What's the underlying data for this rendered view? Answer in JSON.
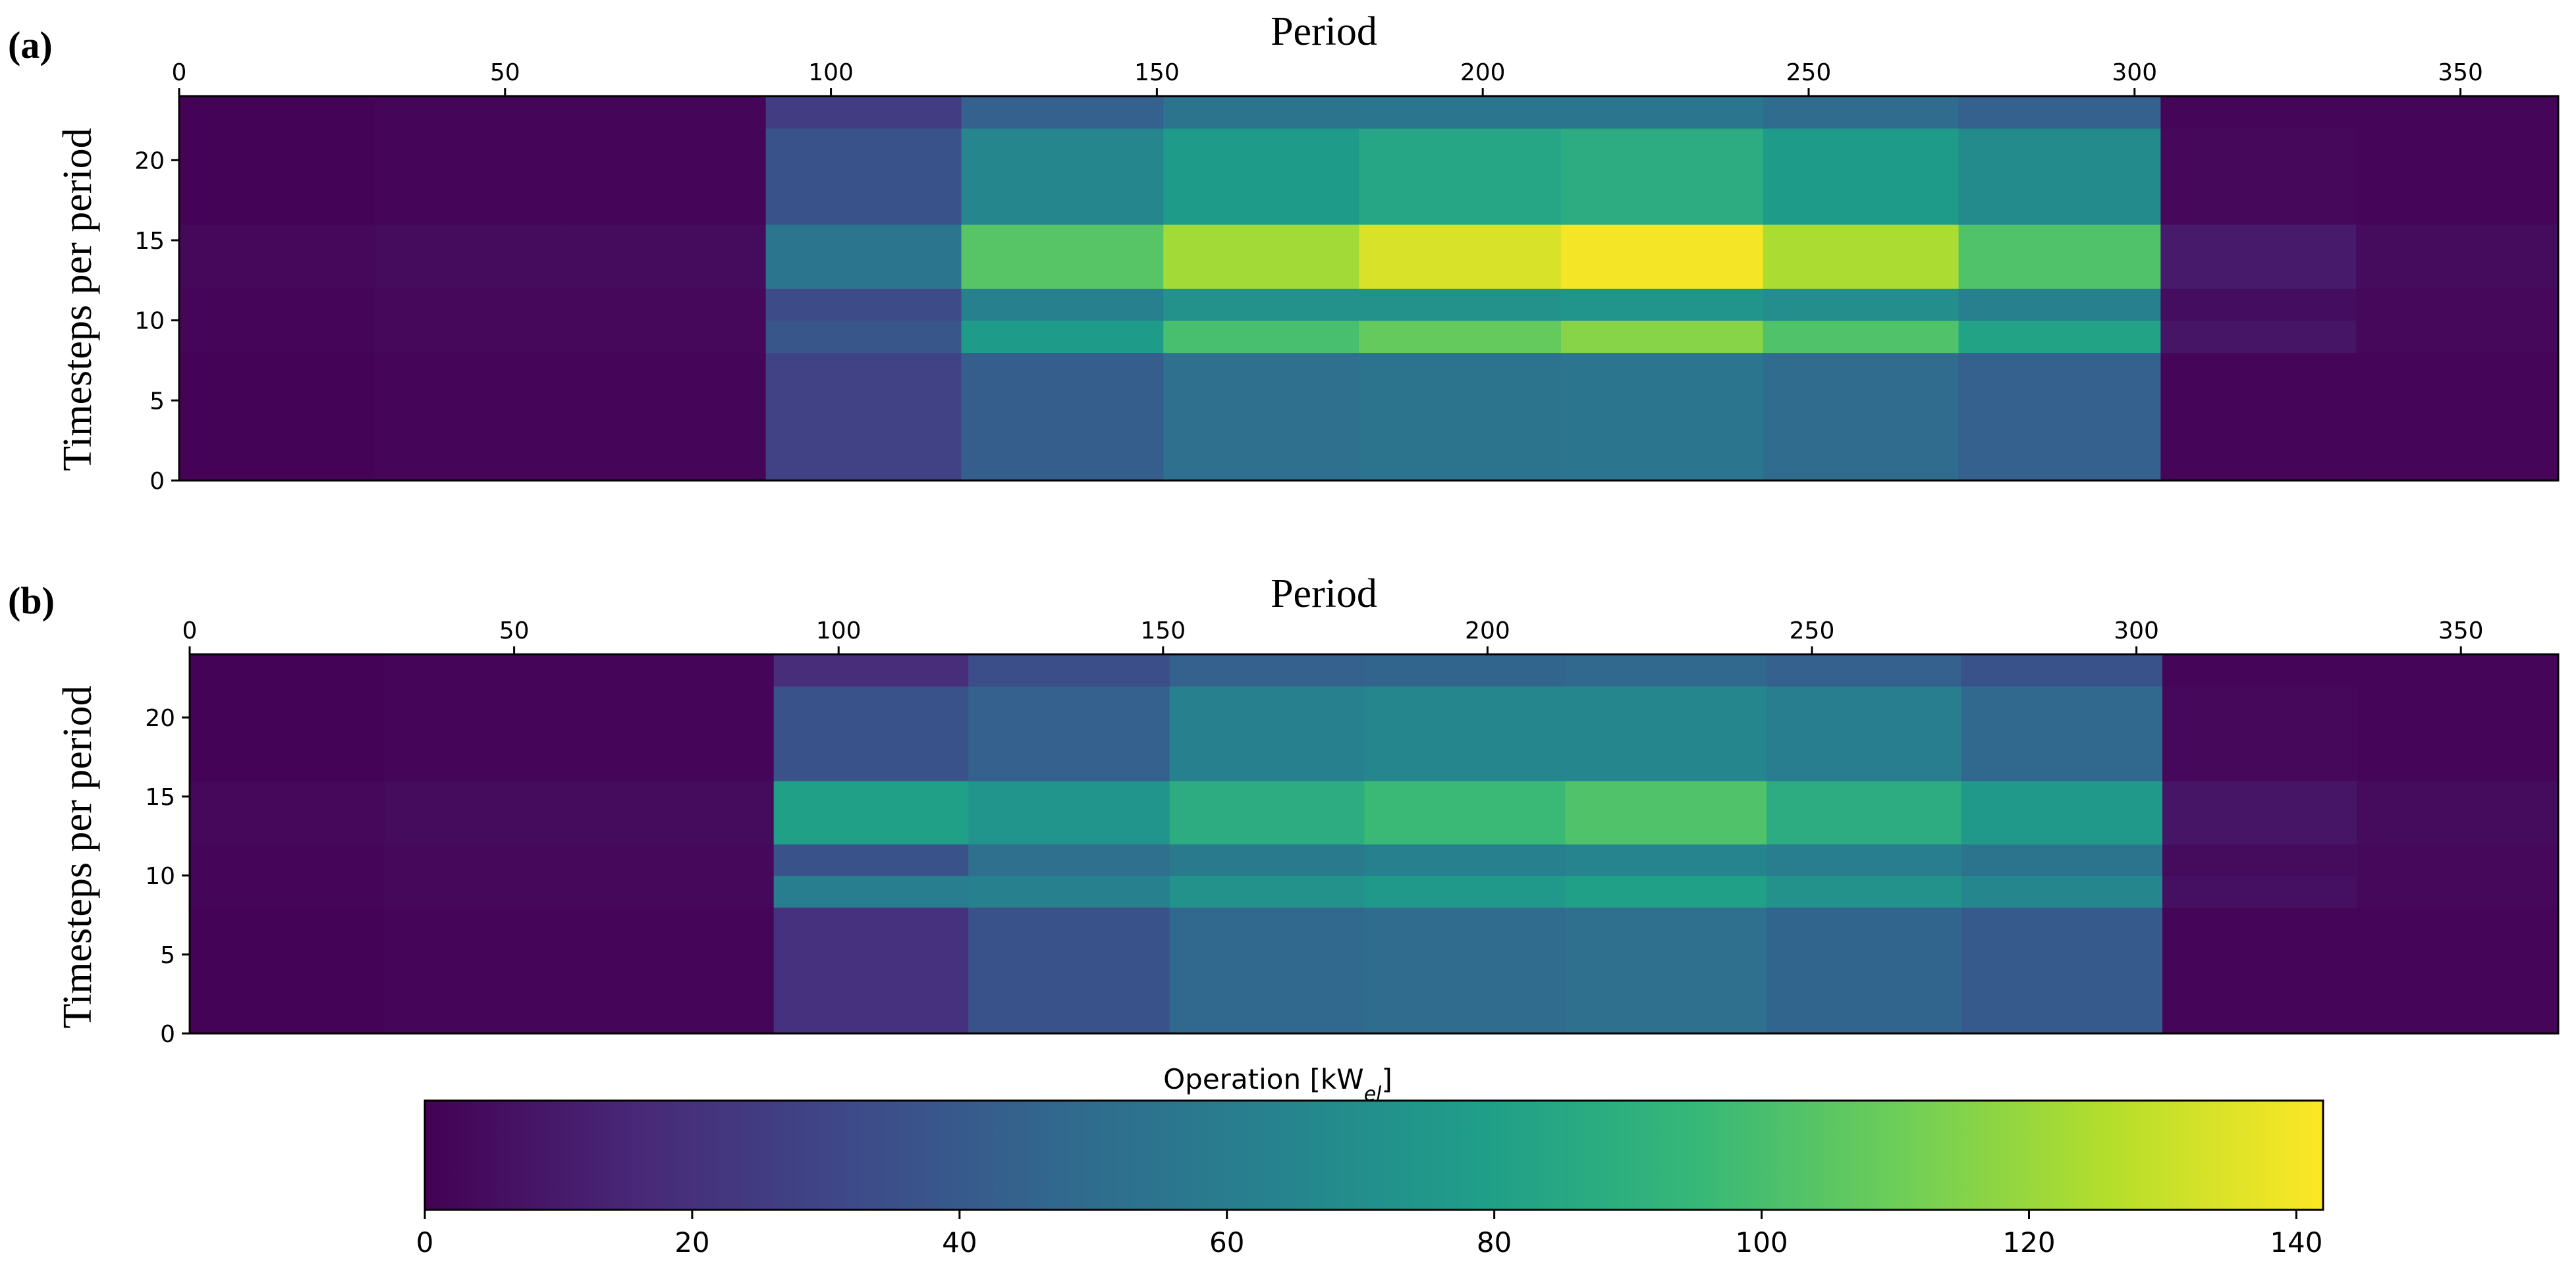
{
  "chart_data": [
    {
      "type": "heatmap",
      "panel_label": "(a)",
      "title": "Period",
      "xlabel": "Period",
      "ylabel": "Timesteps per period",
      "xlim": [
        0,
        365
      ],
      "ylim": [
        0,
        24
      ],
      "x_ticks": [
        0,
        50,
        100,
        150,
        200,
        250,
        300,
        350
      ],
      "y_ticks": [
        0,
        5,
        10,
        15,
        20
      ],
      "x_edges": [
        0,
        30,
        59,
        90,
        120,
        151,
        181,
        212,
        243,
        273,
        304,
        334,
        365
      ],
      "y_edges": [
        0,
        8,
        10,
        12,
        16,
        22,
        24
      ],
      "values": [
        [
          1,
          2,
          2,
          28,
          42,
          52,
          54,
          56,
          50,
          44,
          2,
          2
        ],
        [
          2,
          3,
          3,
          38,
          78,
          100,
          108,
          116,
          102,
          82,
          8,
          3
        ],
        [
          2,
          3,
          3,
          33,
          62,
          72,
          72,
          74,
          70,
          62,
          5,
          3
        ],
        [
          3,
          4,
          4,
          56,
          104,
          122,
          134,
          140,
          124,
          102,
          10,
          4
        ],
        [
          1,
          2,
          2,
          36,
          66,
          78,
          84,
          88,
          78,
          68,
          3,
          2
        ],
        [
          1,
          2,
          2,
          26,
          44,
          54,
          56,
          56,
          50,
          44,
          2,
          2
        ]
      ]
    },
    {
      "type": "heatmap",
      "panel_label": "(b)",
      "title": "Period",
      "xlabel": "Period",
      "ylabel": "Timesteps per period",
      "xlim": [
        0,
        365
      ],
      "ylim": [
        0,
        24
      ],
      "x_ticks": [
        0,
        50,
        100,
        150,
        200,
        250,
        300,
        350
      ],
      "y_ticks": [
        0,
        5,
        10,
        15,
        20
      ],
      "x_edges": [
        0,
        30,
        59,
        90,
        120,
        151,
        181,
        212,
        243,
        273,
        304,
        334,
        365
      ],
      "y_edges": [
        0,
        8,
        10,
        12,
        16,
        22,
        24
      ],
      "values": [
        [
          1,
          2,
          2,
          20,
          36,
          48,
          50,
          52,
          46,
          40,
          2,
          2
        ],
        [
          2,
          3,
          3,
          60,
          62,
          72,
          76,
          80,
          72,
          66,
          6,
          3
        ],
        [
          2,
          3,
          3,
          36,
          52,
          58,
          62,
          64,
          60,
          54,
          4,
          3
        ],
        [
          3,
          4,
          4,
          80,
          74,
          88,
          96,
          102,
          88,
          76,
          8,
          4
        ],
        [
          1,
          2,
          2,
          36,
          44,
          62,
          66,
          66,
          60,
          48,
          3,
          2
        ],
        [
          1,
          2,
          2,
          18,
          34,
          44,
          46,
          48,
          44,
          36,
          2,
          2
        ]
      ]
    }
  ],
  "colorbar": {
    "title": "Operation [kW",
    "title_sub": "el",
    "title_close": "]",
    "min": 0,
    "max": 142,
    "ticks": [
      0,
      20,
      40,
      60,
      80,
      100,
      120,
      140
    ],
    "colormap": "viridis"
  },
  "colors": {
    "viridis": [
      "#440154",
      "#482878",
      "#3e4989",
      "#31688e",
      "#26828e",
      "#1f9e89",
      "#35b779",
      "#6ece58",
      "#b5de2b",
      "#fde725"
    ]
  }
}
